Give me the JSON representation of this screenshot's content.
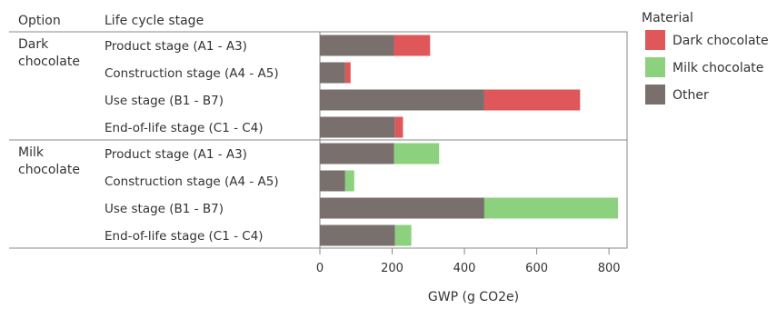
{
  "chart_data": {
    "type": "bar",
    "orientation": "horizontal",
    "stacked": true,
    "header": {
      "option_label": "Option",
      "stage_label": "Life cycle stage"
    },
    "groups": [
      {
        "label_lines": [
          "Dark",
          "chocolate"
        ],
        "material": "Dark chocolate",
        "rows": [
          {
            "stage": "Product stage (A1 - A3)",
            "other": 205,
            "material": 100
          },
          {
            "stage": "Construction stage (A4 - A5)",
            "other": 70,
            "material": 15
          },
          {
            "stage": "Use stage (B1 - B7)",
            "other": 455,
            "material": 265
          },
          {
            "stage": "End-of-life stage (C1 - C4)",
            "other": 208,
            "material": 22
          }
        ]
      },
      {
        "label_lines": [
          "Milk",
          "chocolate"
        ],
        "material": "Milk chocolate",
        "rows": [
          {
            "stage": "Product stage (A1 - A3)",
            "other": 205,
            "material": 125
          },
          {
            "stage": "Construction stage (A4 - A5)",
            "other": 70,
            "material": 25
          },
          {
            "stage": "Use stage (B1 - B7)",
            "other": 455,
            "material": 370
          },
          {
            "stage": "End-of-life stage (C1 - C4)",
            "other": 208,
            "material": 45
          }
        ]
      }
    ],
    "xlabel": "GWP (g CO2e)",
    "xlim": [
      0,
      850
    ],
    "xticks": [
      0,
      200,
      400,
      600,
      800
    ],
    "legend": {
      "title": "Material",
      "position": "top-right",
      "items": [
        {
          "name": "Dark chocolate",
          "color": "#e05759"
        },
        {
          "name": "Milk chocolate",
          "color": "#8cd17d"
        },
        {
          "name": "Other",
          "color": "#79706e"
        }
      ]
    },
    "colors": {
      "Dark chocolate": "#e05759",
      "Milk chocolate": "#8cd17d",
      "Other": "#79706e"
    }
  }
}
